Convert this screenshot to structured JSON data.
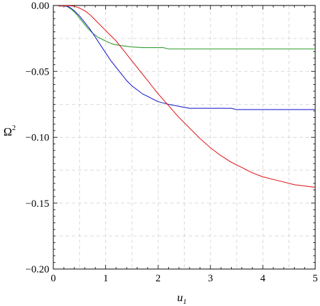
{
  "chart_data": {
    "type": "line",
    "xlabel": "u",
    "xlabel_sub": "1",
    "ylabel": "Ω",
    "ylabel_sup": "2",
    "xlim": [
      0,
      5
    ],
    "ylim": [
      -0.2,
      0
    ],
    "grid": true,
    "x_ticks": [
      0,
      1,
      2,
      3,
      4,
      5
    ],
    "x_tick_labels": [
      "0",
      "1",
      "2",
      "3",
      "4",
      "5"
    ],
    "y_ticks": [
      0,
      -0.05,
      -0.1,
      -0.15,
      -0.2
    ],
    "y_tick_labels": [
      "0.00",
      "−0.05",
      "−0.10",
      "−0.15",
      "−0.20"
    ],
    "series": [
      {
        "color": "#2e9a2e",
        "x": [
          0.1,
          0.15,
          0.25,
          0.35,
          0.45,
          0.55,
          0.65,
          0.75,
          0.85,
          0.95,
          1.05,
          1.15,
          1.3,
          1.5,
          1.7,
          1.9,
          2.1,
          2.2,
          2.5,
          3.0,
          3.5,
          4.0,
          4.5,
          5.0
        ],
        "y": [
          -0.0005,
          -0.0002,
          -0.0005,
          -0.003,
          -0.007,
          -0.012,
          -0.017,
          -0.021,
          -0.024,
          -0.026,
          -0.028,
          -0.0295,
          -0.0305,
          -0.0315,
          -0.032,
          -0.032,
          -0.032,
          -0.033,
          -0.033,
          -0.033,
          -0.033,
          -0.033,
          -0.033,
          -0.033
        ]
      },
      {
        "color": "#2323cc",
        "x": [
          0.1,
          0.2,
          0.3,
          0.4,
          0.5,
          0.6,
          0.7,
          0.8,
          0.9,
          1.0,
          1.1,
          1.2,
          1.3,
          1.4,
          1.5,
          1.6,
          1.7,
          1.8,
          1.9,
          2.0,
          2.2,
          2.4,
          2.6,
          2.8,
          3.0,
          3.4,
          3.5,
          4.0,
          4.5,
          5.0
        ],
        "y": [
          -0.0005,
          -0.0003,
          -0.001,
          -0.004,
          -0.008,
          -0.013,
          -0.018,
          -0.024,
          -0.03,
          -0.036,
          -0.042,
          -0.047,
          -0.052,
          -0.057,
          -0.061,
          -0.064,
          -0.067,
          -0.069,
          -0.071,
          -0.073,
          -0.075,
          -0.0765,
          -0.078,
          -0.078,
          -0.078,
          -0.078,
          -0.079,
          -0.079,
          -0.079,
          -0.079
        ]
      },
      {
        "color": "#e02020",
        "x": [
          0.1,
          0.2,
          0.3,
          0.4,
          0.5,
          0.6,
          0.7,
          0.8,
          0.9,
          1.0,
          1.1,
          1.2,
          1.3,
          1.4,
          1.5,
          1.6,
          1.7,
          1.8,
          1.9,
          2.0,
          2.2,
          2.4,
          2.6,
          2.8,
          3.0,
          3.2,
          3.4,
          3.6,
          3.8,
          4.0,
          4.2,
          4.4,
          4.6,
          4.8,
          5.0
        ],
        "y": [
          -0.0005,
          -0.0002,
          -0.0002,
          -0.0005,
          -0.002,
          -0.004,
          -0.007,
          -0.011,
          -0.015,
          -0.019,
          -0.023,
          -0.027,
          -0.032,
          -0.037,
          -0.042,
          -0.047,
          -0.052,
          -0.057,
          -0.062,
          -0.067,
          -0.076,
          -0.085,
          -0.093,
          -0.101,
          -0.108,
          -0.114,
          -0.119,
          -0.123,
          -0.127,
          -0.13,
          -0.132,
          -0.134,
          -0.136,
          -0.137,
          -0.138
        ]
      }
    ]
  }
}
